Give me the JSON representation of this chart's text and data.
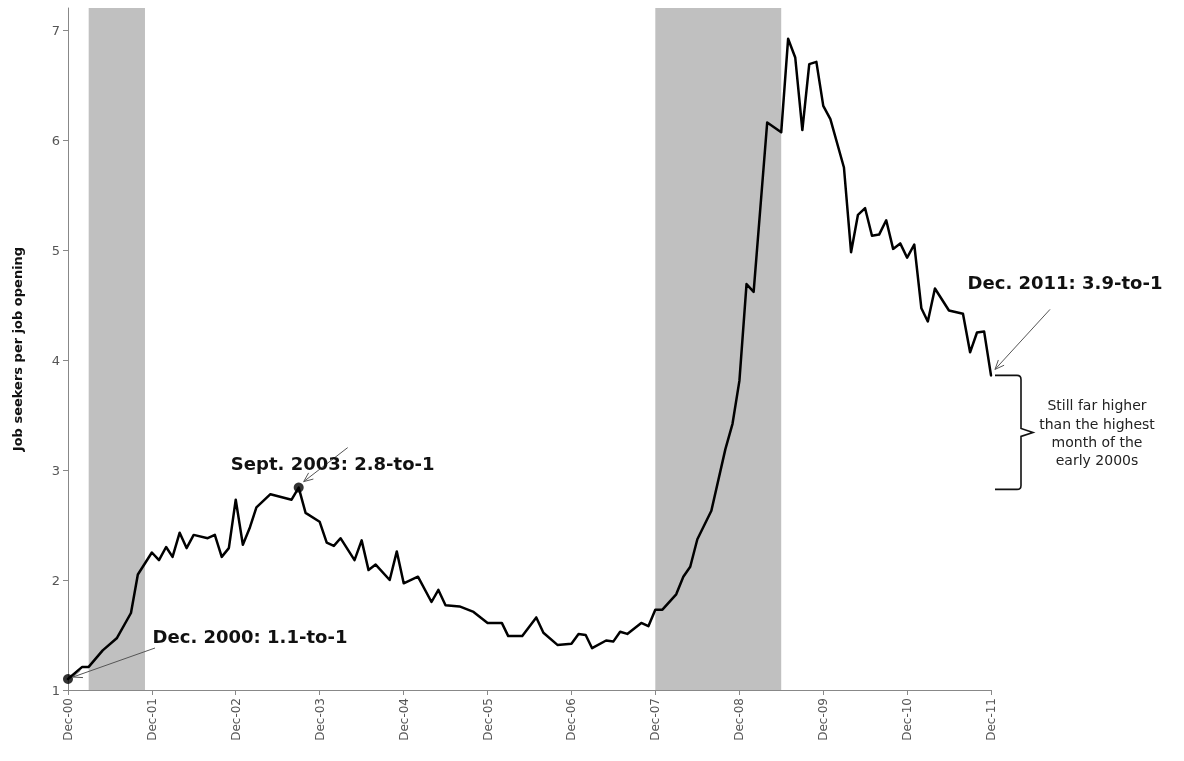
{
  "chart_data": {
    "type": "line",
    "ylabel": "Job seekers per job opening",
    "xlim": [
      "2000-12",
      "2011-12"
    ],
    "xticks": [
      {
        "value": "2000-12",
        "label": "Dec-00"
      },
      {
        "value": "2001-12",
        "label": "Dec-01"
      },
      {
        "value": "2002-12",
        "label": "Dec-02"
      },
      {
        "value": "2003-12",
        "label": "Dec-03"
      },
      {
        "value": "2004-12",
        "label": "Dec-04"
      },
      {
        "value": "2005-12",
        "label": "Dec-05"
      },
      {
        "value": "2006-12",
        "label": "Dec-06"
      },
      {
        "value": "2007-12",
        "label": "Dec-07"
      },
      {
        "value": "2008-12",
        "label": "Dec-08"
      },
      {
        "value": "2009-12",
        "label": "Dec-09"
      },
      {
        "value": "2010-12",
        "label": "Dec-10"
      },
      {
        "value": "2011-12",
        "label": "Dec-11"
      }
    ],
    "ylim": [
      1,
      7.2
    ],
    "yticks": [
      1,
      2,
      3,
      4,
      5,
      6,
      7
    ],
    "grid": false,
    "marker": "none",
    "line_style": "solid",
    "series": [
      {
        "color": "#000000",
        "x": [
          "2000-12",
          "2001-02",
          "2001-03",
          "2001-05",
          "2001-07",
          "2001-09",
          "2001-10",
          "2001-12",
          "2002-01",
          "2002-02",
          "2002-03",
          "2002-04",
          "2002-05",
          "2002-06",
          "2002-08",
          "2002-09",
          "2002-10",
          "2002-11",
          "2002-12",
          "2003-01",
          "2003-02",
          "2003-03",
          "2003-05",
          "2003-08",
          "2003-09",
          "2003-10",
          "2003-12",
          "2004-01",
          "2004-02",
          "2004-03",
          "2004-05",
          "2004-06",
          "2004-07",
          "2004-08",
          "2004-10",
          "2004-11",
          "2004-12",
          "2005-02",
          "2005-04",
          "2005-05",
          "2005-06",
          "2005-08",
          "2005-10",
          "2005-12",
          "2006-02",
          "2006-03",
          "2006-05",
          "2006-07",
          "2006-08",
          "2006-10",
          "2006-12",
          "2007-01",
          "2007-02",
          "2007-03",
          "2007-05",
          "2007-06",
          "2007-07",
          "2007-08",
          "2007-10",
          "2007-11",
          "2007-12",
          "2008-01",
          "2008-03",
          "2008-04",
          "2008-05",
          "2008-06",
          "2008-08",
          "2008-10",
          "2008-11",
          "2008-12",
          "2009-01",
          "2009-02",
          "2009-04",
          "2009-06",
          "2009-07",
          "2009-08",
          "2009-09",
          "2009-10",
          "2009-11",
          "2009-12",
          "2010-01",
          "2010-03",
          "2010-04",
          "2010-05",
          "2010-06",
          "2010-07",
          "2010-08",
          "2010-09",
          "2010-10",
          "2010-11",
          "2010-12",
          "2011-01",
          "2011-02",
          "2011-03",
          "2011-04",
          "2011-06",
          "2011-08",
          "2011-09",
          "2011-10",
          "2011-11",
          "2011-12"
        ],
        "values": [
          1.1,
          1.21,
          1.21,
          1.36,
          1.47,
          1.7,
          2.05,
          2.25,
          2.18,
          2.3,
          2.21,
          2.43,
          2.29,
          2.41,
          2.38,
          2.41,
          2.21,
          2.29,
          2.73,
          2.32,
          2.48,
          2.66,
          2.78,
          2.73,
          2.84,
          2.61,
          2.53,
          2.34,
          2.31,
          2.38,
          2.18,
          2.36,
          2.09,
          2.14,
          2.0,
          2.26,
          1.97,
          2.03,
          1.8,
          1.91,
          1.77,
          1.76,
          1.71,
          1.61,
          1.61,
          1.49,
          1.49,
          1.66,
          1.52,
          1.41,
          1.42,
          1.51,
          1.5,
          1.38,
          1.45,
          1.44,
          1.53,
          1.51,
          1.61,
          1.58,
          1.73,
          1.73,
          1.87,
          2.03,
          2.12,
          2.37,
          2.63,
          3.19,
          3.42,
          3.81,
          4.69,
          4.62,
          6.16,
          6.07,
          6.92,
          6.75,
          6.09,
          6.69,
          6.71,
          6.31,
          6.19,
          5.75,
          4.98,
          5.32,
          5.38,
          5.13,
          5.14,
          5.27,
          5.01,
          5.06,
          4.93,
          5.05,
          4.47,
          4.35,
          4.65,
          4.45,
          4.42,
          4.07,
          4.25,
          4.26,
          3.86
        ]
      },
      {
        "type": "scatter",
        "color": "#000000",
        "marker": "circle",
        "x": [
          "2000-12",
          "2003-09"
        ],
        "values": [
          1.1,
          2.84
        ]
      }
    ],
    "bands": [
      {
        "axis": "x",
        "from": "2001-03",
        "to": "2001-11",
        "color": "#c0c0c0"
      },
      {
        "axis": "x",
        "from": "2007-12",
        "to": "2009-06",
        "color": "#c0c0c0"
      }
    ],
    "annotations": [
      {
        "text": "Dec. 2000: 1.1-to-1",
        "x": "2000-12",
        "y": 1.1
      },
      {
        "text": "Sept. 2003: 2.8-to-1",
        "x": "2003-09",
        "y": 2.84
      },
      {
        "text": "Dec. 2011: 3.9-to-1",
        "x": "2011-12",
        "y": 3.86
      },
      "Still far higher than the highest month of the early 2000s"
    ]
  }
}
